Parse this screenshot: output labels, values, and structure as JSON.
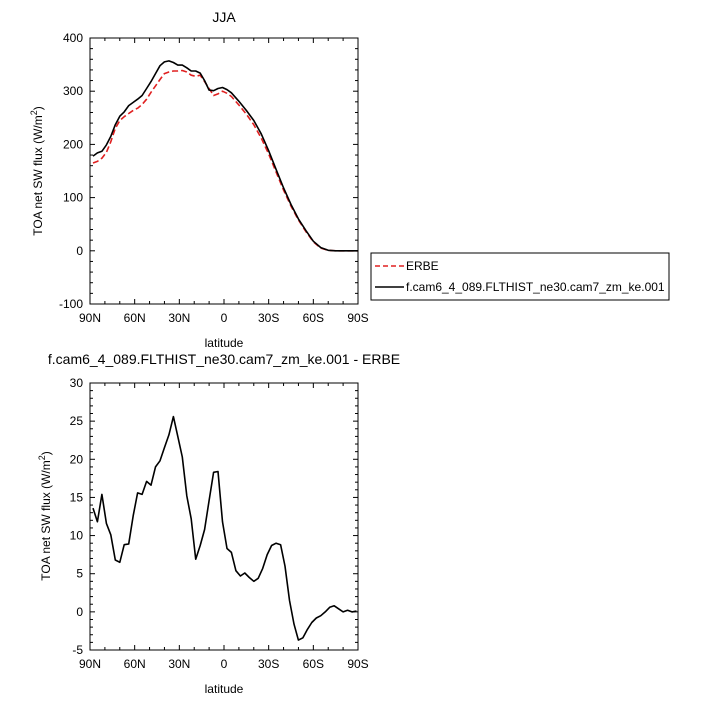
{
  "chart_data": [
    {
      "type": "line",
      "title": "JJA",
      "xlabel": "latitude",
      "ylabel_main": "TOA net SW flux (W/m",
      "ylabel_sup": "2",
      "ylabel_end": ")",
      "xlim": [
        90,
        -90
      ],
      "ylim": [
        -100,
        400
      ],
      "xticks": [
        90,
        60,
        30,
        0,
        -30,
        -60,
        -90
      ],
      "xtick_labels": [
        "90N",
        "60N",
        "30N",
        "0",
        "30S",
        "60S",
        "90S"
      ],
      "yticks": [
        -100,
        0,
        100,
        200,
        300,
        400
      ],
      "ytick_labels": [
        "-100",
        "0",
        "100",
        "200",
        "300",
        "400"
      ],
      "legend_position": "right",
      "series": [
        {
          "name": "ERBE",
          "color": "#e02020",
          "dash": "dashed",
          "x": [
            88,
            85,
            82,
            79,
            76,
            73,
            70,
            67,
            64,
            61,
            58,
            55,
            52,
            49,
            46,
            43,
            40,
            37,
            34,
            31,
            28,
            25,
            22,
            19,
            16,
            13,
            10,
            7,
            4,
            1,
            -2,
            -5,
            -10,
            -15,
            -20,
            -25,
            -30,
            -35,
            -40,
            -45,
            -50,
            -55,
            -60,
            -65,
            -70,
            -75,
            -80,
            -85,
            -90
          ],
          "y": [
            165,
            168,
            174,
            185,
            205,
            230,
            245,
            252,
            258,
            264,
            268,
            275,
            285,
            298,
            310,
            322,
            333,
            336,
            338,
            338,
            339,
            336,
            330,
            328,
            330,
            318,
            305,
            292,
            295,
            300,
            296,
            290,
            274,
            257,
            237,
            212,
            182,
            148,
            114,
            84,
            58,
            36,
            17,
            5,
            1,
            0,
            0,
            0,
            0
          ]
        },
        {
          "name": "f.cam6_4_089.FLTHIST_ne30.cam7_zm_ke.001",
          "color": "#000000",
          "dash": "solid",
          "x": [
            88,
            85,
            82,
            79,
            76,
            73,
            70,
            67,
            64,
            61,
            58,
            55,
            52,
            49,
            46,
            43,
            40,
            37,
            34,
            31,
            28,
            25,
            22,
            19,
            16,
            13,
            10,
            7,
            4,
            1,
            -2,
            -5,
            -10,
            -15,
            -20,
            -25,
            -30,
            -35,
            -40,
            -45,
            -50,
            -55,
            -60,
            -65,
            -70,
            -75,
            -80,
            -85,
            -90
          ],
          "y": [
            178,
            184,
            187,
            199,
            215,
            237,
            253,
            261,
            273,
            279,
            285,
            292,
            305,
            318,
            333,
            348,
            355,
            357,
            354,
            349,
            349,
            344,
            338,
            338,
            334,
            320,
            302,
            301,
            305,
            307,
            303,
            297,
            281,
            264,
            245,
            220,
            188,
            153,
            118,
            87,
            60,
            38,
            18,
            6,
            1,
            0,
            0,
            0,
            0
          ]
        }
      ]
    },
    {
      "type": "line",
      "title": "f.cam6_4_089.FLTHIST_ne30.cam7_zm_ke.001 - ERBE",
      "xlabel": "latitude",
      "ylabel_main": "TOA net SW flux (W/m",
      "ylabel_sup": "2",
      "ylabel_end": ")",
      "xlim": [
        90,
        -90
      ],
      "ylim": [
        -5,
        30
      ],
      "xticks": [
        90,
        60,
        30,
        0,
        -30,
        -60,
        -90
      ],
      "xtick_labels": [
        "90N",
        "60N",
        "30N",
        "0",
        "30S",
        "60S",
        "90S"
      ],
      "yticks": [
        -5,
        0,
        5,
        10,
        15,
        20,
        25,
        30
      ],
      "ytick_labels": [
        "-5",
        "0",
        "5",
        "10",
        "15",
        "20",
        "25",
        "30"
      ],
      "series": [
        {
          "color": "#000000",
          "dash": "solid",
          "x": [
            88,
            85,
            82,
            79,
            76,
            73,
            70,
            67,
            64,
            61,
            58,
            55,
            52,
            49,
            46,
            43,
            40,
            37,
            34,
            31,
            28,
            25,
            22,
            19,
            16,
            13,
            10,
            7,
            4,
            1,
            -2,
            -5,
            -8,
            -11,
            -14,
            -17,
            -20,
            -23,
            -26,
            -29,
            -32,
            -35,
            -38,
            -41,
            -44,
            -47,
            -50,
            -53,
            -56,
            -59,
            -62,
            -65,
            -68,
            -71,
            -74,
            -77,
            -80,
            -83,
            -86,
            -89
          ],
          "y": [
            13.6,
            11.8,
            15.4,
            11.6,
            10.1,
            6.8,
            6.5,
            8.8,
            8.9,
            12.6,
            15.6,
            15.4,
            17.1,
            16.6,
            19.0,
            19.8,
            21.5,
            23.2,
            25.6,
            23.0,
            20.3,
            15.2,
            12.2,
            6.9,
            8.7,
            10.8,
            14.6,
            18.3,
            18.4,
            11.8,
            8.3,
            7.8,
            5.4,
            4.7,
            5.1,
            4.5,
            4.0,
            4.4,
            5.7,
            7.5,
            8.7,
            9.0,
            8.8,
            6.0,
            1.5,
            -1.6,
            -3.7,
            -3.4,
            -2.3,
            -1.4,
            -0.8,
            -0.5,
            0.0,
            0.6,
            0.8,
            0.4,
            0.0,
            0.2,
            0.0,
            0.1
          ]
        }
      ]
    }
  ]
}
